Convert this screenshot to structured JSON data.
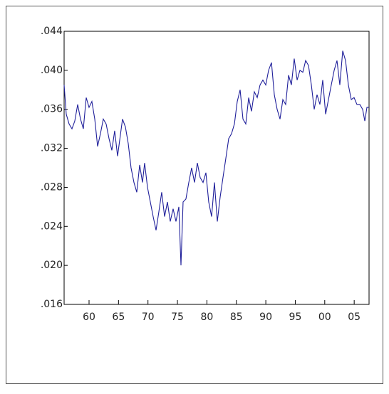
{
  "chart_data": {
    "type": "line",
    "xlim": [
      1955.77,
      2007.52
    ],
    "ylim": [
      0.016,
      0.044
    ],
    "xticks": [
      {
        "value": 1960,
        "label": "60"
      },
      {
        "value": 1965,
        "label": "65"
      },
      {
        "value": 1970,
        "label": "70"
      },
      {
        "value": 1975,
        "label": "75"
      },
      {
        "value": 1980,
        "label": "80"
      },
      {
        "value": 1985,
        "label": "85"
      },
      {
        "value": 1990,
        "label": "90"
      },
      {
        "value": 1995,
        "label": "95"
      },
      {
        "value": 2000,
        "label": "00"
      },
      {
        "value": 2005,
        "label": "05"
      }
    ],
    "yticks": [
      {
        "value": 0.016,
        "label": ".016"
      },
      {
        "value": 0.02,
        "label": ".020"
      },
      {
        "value": 0.024,
        "label": ".024"
      },
      {
        "value": 0.028,
        "label": ".028"
      },
      {
        "value": 0.032,
        "label": ".032"
      },
      {
        "value": 0.036,
        "label": ".036"
      },
      {
        "value": 0.04,
        "label": ".040"
      },
      {
        "value": 0.044,
        "label": ".044"
      }
    ],
    "grid": false,
    "series": [
      {
        "color": "#1f1f9a",
        "x": [
          1955.77,
          1956.13,
          1956.61,
          1957.1,
          1957.58,
          1958.07,
          1958.55,
          1959.03,
          1959.52,
          1960.0,
          1960.48,
          1960.97,
          1961.45,
          1961.93,
          1962.42,
          1962.9,
          1963.39,
          1963.87,
          1964.35,
          1964.84,
          1965.68,
          1966.17,
          1966.65,
          1967.13,
          1967.62,
          1968.1,
          1968.59,
          1969.07,
          1969.43,
          1969.92,
          1970.4,
          1970.88,
          1971.37,
          1971.85,
          1972.33,
          1972.82,
          1973.3,
          1973.78,
          1974.27,
          1974.75,
          1975.24,
          1975.6,
          1975.96,
          1976.44,
          1976.93,
          1977.41,
          1977.9,
          1978.38,
          1978.86,
          1979.35,
          1979.83,
          1980.31,
          1980.8,
          1981.28,
          1981.77,
          1982.25,
          1982.73,
          1983.22,
          1983.7,
          1984.18,
          1984.67,
          1985.15,
          1985.64,
          1986.12,
          1986.6,
          1987.09,
          1987.57,
          1988.05,
          1988.54,
          1989.02,
          1989.5,
          1989.99,
          1990.47,
          1990.96,
          1991.44,
          1991.92,
          1992.41,
          1992.89,
          1993.37,
          1993.86,
          1994.34,
          1994.82,
          1995.31,
          1995.79,
          1996.28,
          1996.76,
          1997.24,
          1997.73,
          1998.21,
          1998.69,
          1999.18,
          1999.66,
          2000.15,
          2000.63,
          2001.11,
          2001.6,
          2002.08,
          2002.56,
          2003.05,
          2003.53,
          2004.01,
          2004.5,
          2004.98,
          2005.46,
          2005.95,
          2006.43,
          2006.8,
          2007.16,
          2007.52
        ],
        "values": [
          0.0385,
          0.0355,
          0.0345,
          0.034,
          0.0348,
          0.0365,
          0.035,
          0.034,
          0.0372,
          0.0362,
          0.0368,
          0.035,
          0.0322,
          0.0335,
          0.035,
          0.0345,
          0.033,
          0.0318,
          0.0338,
          0.0312,
          0.035,
          0.0342,
          0.0325,
          0.03,
          0.0285,
          0.0275,
          0.0303,
          0.0285,
          0.0305,
          0.028,
          0.0265,
          0.025,
          0.0236,
          0.0255,
          0.0275,
          0.025,
          0.0265,
          0.0245,
          0.0258,
          0.0245,
          0.026,
          0.02,
          0.0265,
          0.0268,
          0.0285,
          0.03,
          0.0285,
          0.0305,
          0.029,
          0.0285,
          0.0295,
          0.0265,
          0.025,
          0.0285,
          0.0245,
          0.027,
          0.029,
          0.031,
          0.033,
          0.0335,
          0.0345,
          0.0368,
          0.038,
          0.035,
          0.0345,
          0.0372,
          0.0358,
          0.0378,
          0.0372,
          0.0385,
          0.039,
          0.0385,
          0.04,
          0.0408,
          0.0375,
          0.036,
          0.035,
          0.037,
          0.0365,
          0.0395,
          0.0385,
          0.0412,
          0.039,
          0.04,
          0.0398,
          0.041,
          0.0405,
          0.0385,
          0.036,
          0.0375,
          0.0365,
          0.039,
          0.0355,
          0.037,
          0.0385,
          0.04,
          0.041,
          0.0385,
          0.042,
          0.041,
          0.0385,
          0.037,
          0.0372,
          0.0365,
          0.0365,
          0.036,
          0.0348,
          0.0362,
          0.0362
        ]
      }
    ]
  }
}
